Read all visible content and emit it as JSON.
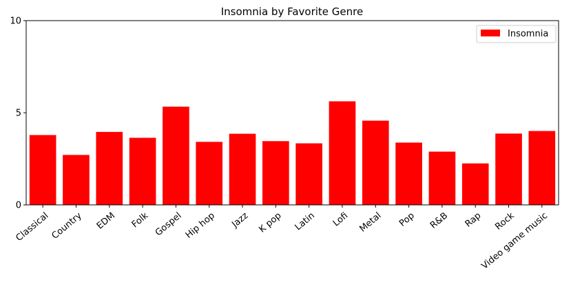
{
  "chart_data": {
    "type": "bar",
    "title": "Insomnia by Favorite Genre",
    "xlabel": "",
    "ylabel": "",
    "categories": [
      "Classical",
      "Country",
      "EDM",
      "Folk",
      "Gospel",
      "Hip hop",
      "Jazz",
      "K pop",
      "Latin",
      "Lofi",
      "Metal",
      "Pop",
      "R&B",
      "Rap",
      "Rock",
      "Video game music"
    ],
    "series": [
      {
        "name": "Insomnia",
        "color": "#ff0000",
        "values": [
          3.79,
          2.71,
          3.96,
          3.64,
          5.33,
          3.42,
          3.86,
          3.46,
          3.34,
          5.62,
          4.57,
          3.38,
          2.89,
          2.25,
          3.87,
          4.01
        ]
      }
    ],
    "ylim": [
      0,
      10
    ],
    "yticks": [
      0,
      5,
      10
    ],
    "grid": false,
    "legend_position": "upper right"
  }
}
